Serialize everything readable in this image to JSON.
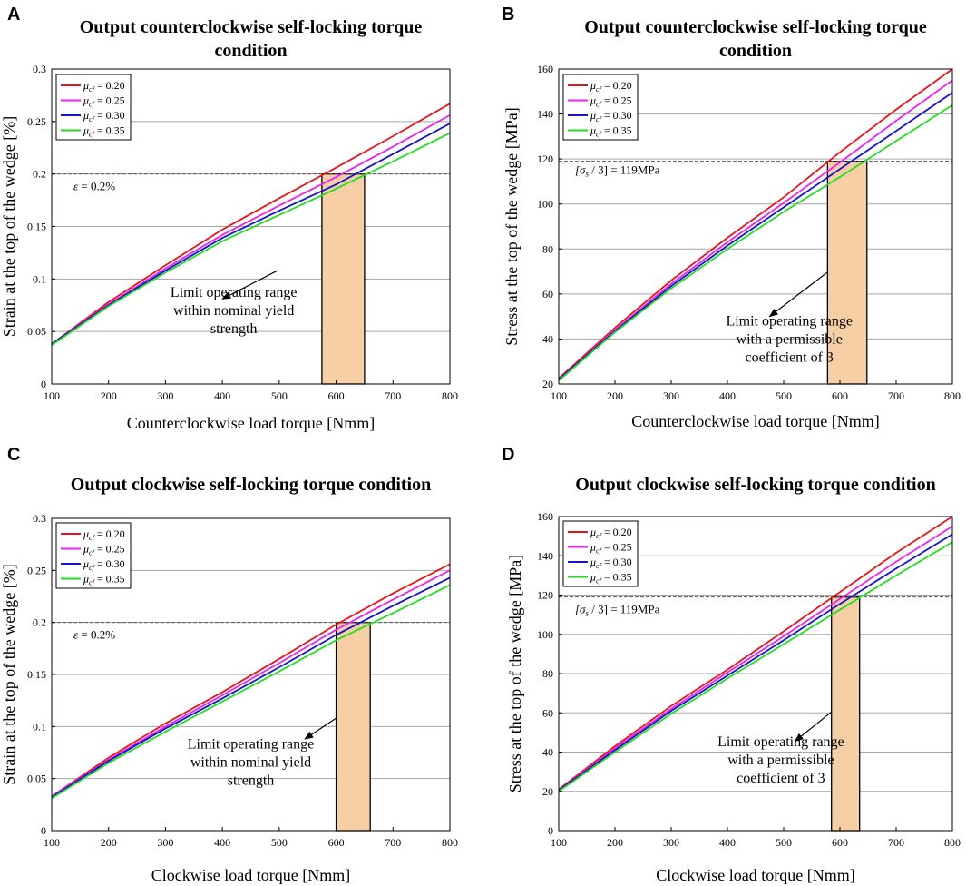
{
  "chart_data": [
    {
      "letter": "A",
      "type": "line",
      "title_lines": [
        "Output counterclockwise self-locking torque",
        "condition"
      ],
      "xlabel": "Counterclockwise load torque [Nmm]",
      "ylabel": "Strain at the top of the wedge [%]",
      "xlim": [
        100,
        800
      ],
      "ylim": [
        0,
        0.3
      ],
      "xticks": [
        100,
        200,
        300,
        400,
        500,
        600,
        700,
        800
      ],
      "yticks": [
        0,
        0.05,
        0.1,
        0.15,
        0.2,
        0.25,
        0.3
      ],
      "ytick_labels": [
        "0",
        "0.05",
        "0.1",
        "0.15",
        "0.2",
        "0.25",
        "0.3"
      ],
      "grid": "horizontal",
      "legend_position": "top-left",
      "series": [
        {
          "name": "= 0.20",
          "color": "#e8141c",
          "x": [
            100,
            200,
            300,
            400,
            500,
            600,
            700,
            800
          ],
          "y": [
            0.038,
            0.078,
            0.113,
            0.147,
            0.177,
            0.206,
            0.236,
            0.267
          ]
        },
        {
          "name": "= 0.25",
          "color": "#ee22ee",
          "x": [
            100,
            200,
            300,
            400,
            500,
            600,
            700,
            800
          ],
          "y": [
            0.038,
            0.076,
            0.11,
            0.142,
            0.17,
            0.197,
            0.226,
            0.256
          ]
        },
        {
          "name": "= 0.30",
          "color": "#1414c8",
          "x": [
            100,
            200,
            300,
            400,
            500,
            600,
            700,
            800
          ],
          "y": [
            0.038,
            0.075,
            0.108,
            0.139,
            0.165,
            0.19,
            0.219,
            0.248
          ]
        },
        {
          "name": "= 0.35",
          "color": "#22dd22",
          "x": [
            100,
            200,
            300,
            400,
            500,
            600,
            700,
            800
          ],
          "y": [
            0.037,
            0.074,
            0.106,
            0.136,
            0.161,
            0.186,
            0.212,
            0.239
          ]
        }
      ],
      "limit_value": 0.2,
      "limit_label": "= 0.2%",
      "limit_symbol": "ε",
      "region_x": [
        575,
        650
      ],
      "arrow_from": [
        497,
        0.108
      ],
      "arrow_to": [
        400,
        0.081
      ],
      "annotation_lines": [
        "Limit operating range",
        "within nominal yield",
        "strength"
      ],
      "annotation_anchor": [
        420,
        0.083
      ]
    },
    {
      "letter": "B",
      "type": "line",
      "title_lines": [
        "Output counterclockwise self-locking torque",
        "condition"
      ],
      "xlabel": "Counterclockwise load torque [Nmm]",
      "ylabel": "Stress at the top of the wedge [MPa]",
      "xlim": [
        100,
        800
      ],
      "ylim": [
        20,
        160
      ],
      "xticks": [
        100,
        200,
        300,
        400,
        500,
        600,
        700,
        800
      ],
      "yticks": [
        20,
        40,
        60,
        80,
        100,
        120,
        140,
        160
      ],
      "ytick_labels": [
        "20",
        "40",
        "60",
        "80",
        "100",
        "120",
        "140",
        "160"
      ],
      "grid": "horizontal",
      "legend_position": "top-left",
      "series": [
        {
          "name": "= 0.20",
          "color": "#e8141c",
          "x": [
            100,
            200,
            300,
            400,
            500,
            600,
            700,
            800
          ],
          "y": [
            22.5,
            45.0,
            66.0,
            85.0,
            103.0,
            123.0,
            142.0,
            160.0
          ]
        },
        {
          "name": "= 0.25",
          "color": "#ee22ee",
          "x": [
            100,
            200,
            300,
            400,
            500,
            600,
            700,
            800
          ],
          "y": [
            22.0,
            44.0,
            64.5,
            83.0,
            100.5,
            118.5,
            137.0,
            155.0
          ]
        },
        {
          "name": "= 0.30",
          "color": "#1414c8",
          "x": [
            100,
            200,
            300,
            400,
            500,
            600,
            700,
            800
          ],
          "y": [
            22.0,
            43.5,
            63.5,
            81.5,
            98.5,
            115.5,
            132.5,
            149.5
          ]
        },
        {
          "name": "= 0.35",
          "color": "#22dd22",
          "x": [
            100,
            200,
            300,
            400,
            500,
            600,
            700,
            800
          ],
          "y": [
            21.5,
            43.0,
            62.5,
            80.0,
            96.5,
            112.0,
            128.0,
            144.0
          ]
        }
      ],
      "limit_value": 119,
      "limit_label": "/ 3] = 119MPa",
      "limit_symbol": "[σ",
      "region_x": [
        578,
        648
      ],
      "arrow_from": [
        577,
        69.5
      ],
      "arrow_to": [
        475,
        50
      ],
      "annotation_lines": [
        "Limit operating range",
        "with a permissible",
        "coefficient of 3"
      ],
      "annotation_anchor": [
        510,
        46
      ]
    },
    {
      "letter": "C",
      "type": "line",
      "title_lines": [
        "Output clockwise self-locking torque condition"
      ],
      "xlabel": "Clockwise load torque [Nmm]",
      "ylabel": "Strain at the top of the wedge [%]",
      "xlim": [
        100,
        800
      ],
      "ylim": [
        0,
        0.3
      ],
      "xticks": [
        100,
        200,
        300,
        400,
        500,
        600,
        700,
        800
      ],
      "yticks": [
        0,
        0.05,
        0.1,
        0.15,
        0.2,
        0.25,
        0.3
      ],
      "ytick_labels": [
        "0",
        "0.05",
        "0.1",
        "0.15",
        "0.2",
        "0.25",
        "0.3"
      ],
      "grid": "horizontal",
      "legend_position": "top-left",
      "series": [
        {
          "name": "= 0.20",
          "color": "#e8141c",
          "x": [
            100,
            200,
            300,
            400,
            500,
            600,
            700,
            800
          ],
          "y": [
            0.033,
            0.07,
            0.103,
            0.133,
            0.165,
            0.198,
            0.228,
            0.256
          ]
        },
        {
          "name": "= 0.25",
          "color": "#ee22ee",
          "x": [
            100,
            200,
            300,
            400,
            500,
            600,
            700,
            800
          ],
          "y": [
            0.033,
            0.068,
            0.1,
            0.13,
            0.161,
            0.193,
            0.222,
            0.25
          ]
        },
        {
          "name": "= 0.30",
          "color": "#1414c8",
          "x": [
            100,
            200,
            300,
            400,
            500,
            600,
            700,
            800
          ],
          "y": [
            0.032,
            0.067,
            0.098,
            0.127,
            0.157,
            0.188,
            0.216,
            0.243
          ]
        },
        {
          "name": "= 0.35",
          "color": "#22dd22",
          "x": [
            100,
            200,
            300,
            400,
            500,
            600,
            700,
            800
          ],
          "y": [
            0.031,
            0.065,
            0.095,
            0.124,
            0.153,
            0.183,
            0.209,
            0.236
          ]
        }
      ],
      "limit_value": 0.2,
      "limit_label": "= 0.2%",
      "limit_symbol": "ε",
      "region_x": [
        600,
        660
      ],
      "arrow_from": [
        600,
        0.108
      ],
      "arrow_to": [
        545,
        0.088
      ],
      "annotation_lines": [
        "Limit operating range",
        "within nominal yield",
        "strength"
      ],
      "annotation_anchor": [
        450,
        0.079
      ]
    },
    {
      "letter": "D",
      "type": "line",
      "title_lines": [
        "Output clockwise self-locking torque condition"
      ],
      "xlabel": "Clockwise load torque [Nmm]",
      "ylabel": "Stress at the top of the wedge [MPa]",
      "xlim": [
        100,
        800
      ],
      "ylim": [
        0,
        160
      ],
      "xticks": [
        100,
        200,
        300,
        400,
        500,
        600,
        700,
        800
      ],
      "yticks": [
        0,
        20,
        40,
        60,
        80,
        100,
        120,
        140,
        160
      ],
      "ytick_labels": [
        "0",
        "20",
        "40",
        "60",
        "80",
        "100",
        "120",
        "140",
        "160"
      ],
      "grid": "horizontal",
      "legend_position": "top-left",
      "series": [
        {
          "name": "= 0.20",
          "color": "#e8141c",
          "x": [
            100,
            200,
            300,
            400,
            500,
            600,
            700,
            800
          ],
          "y": [
            21.0,
            43.0,
            63.5,
            82.0,
            101.5,
            121.5,
            141.5,
            160.0
          ]
        },
        {
          "name": "= 0.25",
          "color": "#ee22ee",
          "x": [
            100,
            200,
            300,
            400,
            500,
            600,
            700,
            800
          ],
          "y": [
            20.5,
            42.0,
            62.0,
            80.5,
            99.0,
            118.0,
            137.0,
            155.0
          ]
        },
        {
          "name": "= 0.30",
          "color": "#1414c8",
          "x": [
            100,
            200,
            300,
            400,
            500,
            600,
            700,
            800
          ],
          "y": [
            20.5,
            41.0,
            61.0,
            79.0,
            97.0,
            115.5,
            133.5,
            151.0
          ]
        },
        {
          "name": "= 0.35",
          "color": "#22dd22",
          "x": [
            100,
            200,
            300,
            400,
            500,
            600,
            700,
            800
          ],
          "y": [
            20.0,
            40.0,
            59.5,
            77.5,
            95.0,
            112.5,
            130.0,
            147.0
          ]
        }
      ],
      "limit_value": 119,
      "limit_label": "/ 3] = 119MPa",
      "limit_symbol": "[σ",
      "region_x": [
        585,
        635
      ],
      "arrow_from": [
        585,
        60.5
      ],
      "arrow_to": [
        520,
        45.5
      ],
      "annotation_lines": [
        "Limit operating range",
        "with a permissible",
        "coefficient of 3"
      ],
      "annotation_anchor": [
        495,
        43
      ]
    }
  ],
  "legend_symbol": "μ",
  "legend_subscript": "cf",
  "limit_subscript": "s",
  "colors": {
    "region_fill": "#f7cfa5",
    "grid": "#a6a6a6",
    "axis": "#000000",
    "limit_line": "#555555"
  }
}
